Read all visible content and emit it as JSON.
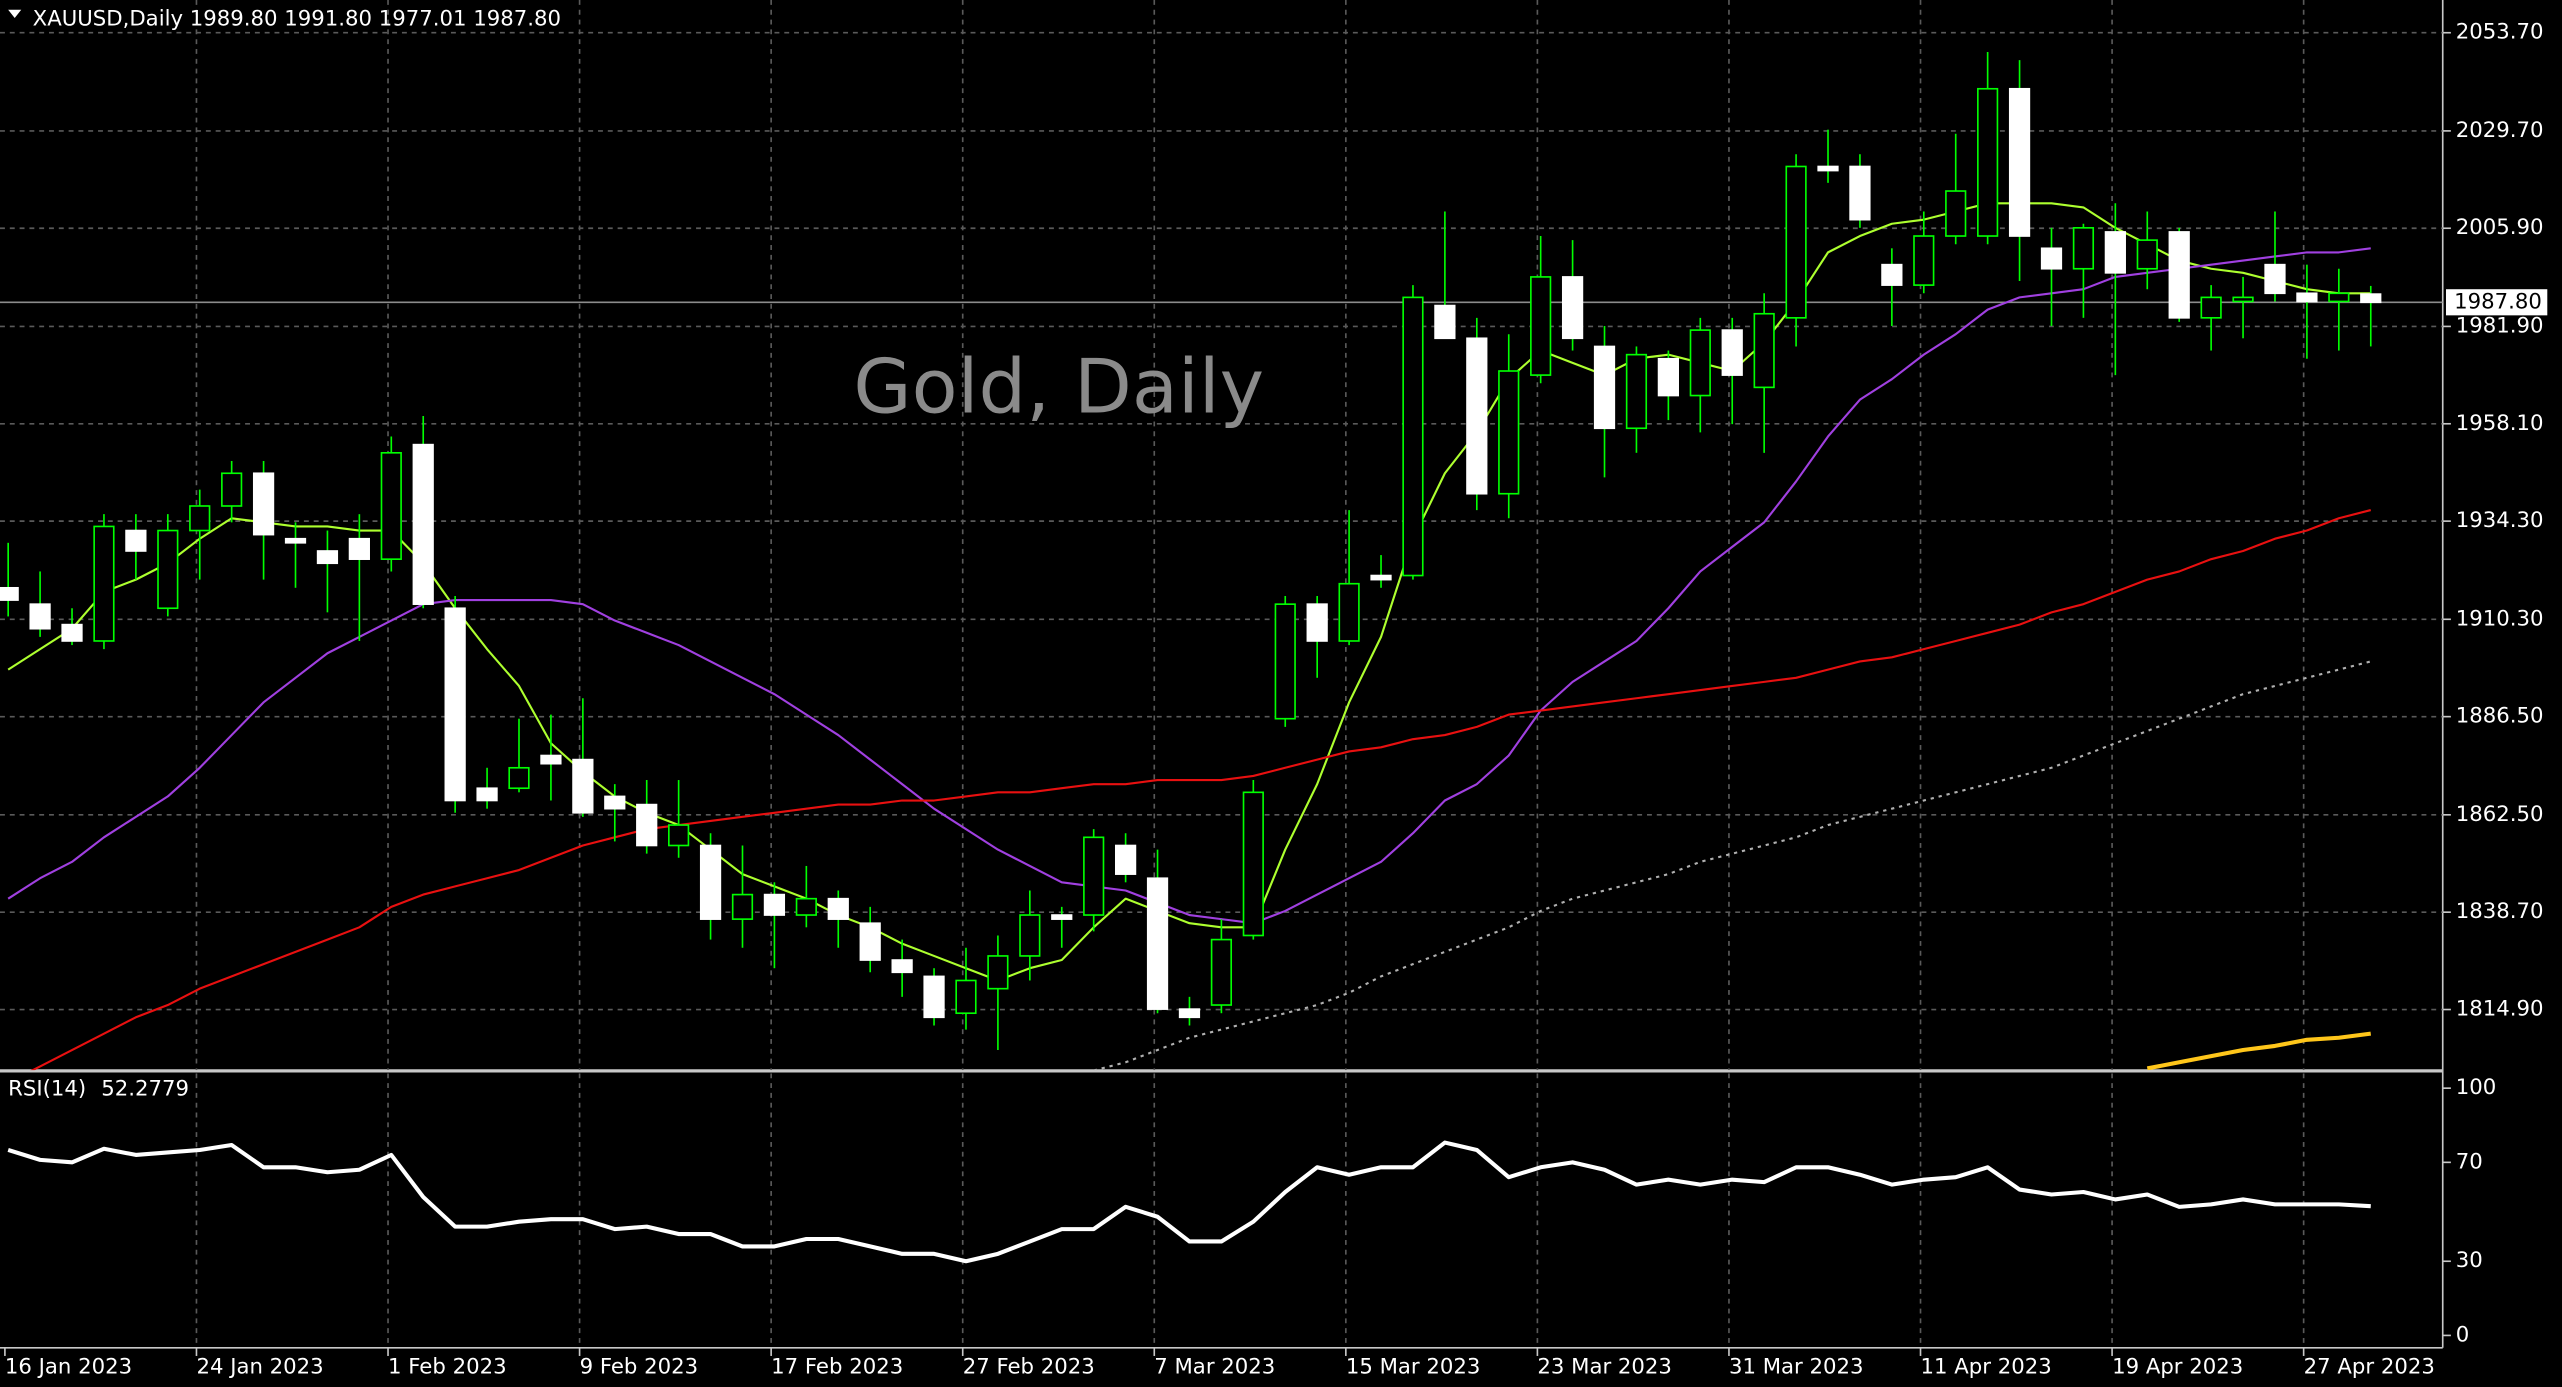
{
  "chart_data": [
    {
      "type": "candlestick",
      "title": "XAUUSD,Daily  1989.80 1991.80 1977.01 1987.80",
      "watermark": "Gold, Daily",
      "categories": [
        "16 Jan 2023",
        null,
        null,
        null,
        null,
        null,
        "24 Jan 2023",
        null,
        null,
        null,
        null,
        null,
        "1 Feb 2023",
        null,
        null,
        null,
        null,
        null,
        "9 Feb 2023",
        null,
        null,
        null,
        null,
        null,
        "17 Feb 2023",
        null,
        null,
        null,
        null,
        null,
        "27 Feb 2023",
        null,
        null,
        null,
        null,
        null,
        "7 Mar 2023",
        null,
        null,
        null,
        null,
        null,
        "15 Mar 2023",
        null,
        null,
        null,
        null,
        null,
        "23 Mar 2023",
        null,
        null,
        null,
        null,
        null,
        "31 Mar 2023",
        null,
        null,
        null,
        null,
        null,
        "11 Apr 2023",
        null,
        null,
        null,
        null,
        null,
        "19 Apr 2023",
        null,
        null,
        null,
        null,
        null,
        "27 Apr 2023",
        null,
        null
      ],
      "open": [
        1918,
        1914,
        1909,
        1905,
        1932,
        1913,
        1932,
        1938,
        1946,
        1930,
        1927,
        1930,
        1925,
        1953,
        1913,
        1869,
        1869,
        1877,
        1876,
        1867,
        1865,
        1855,
        1855,
        1837,
        1843,
        1838,
        1842,
        1836,
        1827,
        1823,
        1814,
        1820,
        1828,
        1838,
        1838,
        1855,
        1847,
        1815,
        1816,
        1833,
        1886,
        1914,
        1905,
        1921,
        1921,
        1987,
        1979,
        1941,
        1970,
        1994,
        1977,
        1957,
        1974,
        1965,
        1981,
        1967,
        1984,
        2021,
        2021,
        1997,
        1992,
        2004,
        2004,
        2040,
        2001,
        1996,
        2005,
        1996,
        2005,
        1984,
        1988,
        1997,
        1990,
        1988,
        1989.8
      ],
      "high": [
        1929,
        1922,
        1913,
        1936,
        1936,
        1936,
        1942,
        1949,
        1949,
        1934,
        1932,
        1936,
        1955,
        1960,
        1916,
        1874,
        1886,
        1887,
        1891,
        1870,
        1871,
        1871,
        1858,
        1855,
        1846,
        1850,
        1844,
        1840,
        1832,
        1825,
        1830,
        1833,
        1844,
        1840,
        1859,
        1858,
        1854,
        1818,
        1837,
        1871,
        1916,
        1916,
        1937,
        1926,
        1992,
        2010,
        1984,
        1980,
        2004,
        2003,
        1982,
        1977,
        1976,
        1984,
        1984,
        1990,
        2024,
        2030,
        2024,
        2001,
        2010,
        2029,
        2049,
        2047,
        2006,
        2007,
        2012,
        2010,
        2006,
        1992,
        1994,
        2010,
        1997,
        1996,
        1991.8
      ],
      "low": [
        1911,
        1906,
        1904,
        1903,
        1920,
        1911,
        1920,
        1934,
        1920,
        1918,
        1912,
        1905,
        1922,
        1913,
        1863,
        1864,
        1868,
        1866,
        1862,
        1856,
        1853,
        1852,
        1832,
        1830,
        1825,
        1835,
        1830,
        1824,
        1818,
        1811,
        1810,
        1805,
        1822,
        1830,
        1834,
        1846,
        1814,
        1811,
        1814,
        1832,
        1884,
        1896,
        1904,
        1918,
        1920,
        1979,
        1937,
        1935,
        1968,
        1976,
        1945,
        1951,
        1959,
        1956,
        1958,
        1951,
        1977,
        2017,
        2006,
        1982,
        1990,
        2002,
        2002,
        1993,
        1982,
        1984,
        1970,
        1991,
        1983,
        1976,
        1979,
        1988,
        1974,
        1976,
        1977.01
      ],
      "close": [
        1915,
        1908,
        1905,
        1933,
        1927,
        1932,
        1938,
        1946,
        1931,
        1929,
        1924,
        1925,
        1951,
        1914,
        1866,
        1866,
        1874,
        1875,
        1863,
        1864,
        1855,
        1860,
        1837,
        1843,
        1838,
        1842,
        1837,
        1827,
        1824,
        1813,
        1822,
        1828,
        1838,
        1837,
        1857,
        1848,
        1815,
        1813,
        1832,
        1868,
        1914,
        1905,
        1919,
        1920,
        1989,
        1979,
        1941,
        1971,
        1994,
        1979,
        1957,
        1975,
        1965,
        1981,
        1970,
        1985,
        2021,
        2020,
        2008,
        1992,
        2004,
        2015,
        2040,
        2004,
        1996,
        2006,
        1995,
        2003,
        1984,
        1989,
        1989,
        1990,
        1988,
        1990,
        1987.8
      ],
      "up_color": "#000000",
      "down_color": "#ffffff",
      "wick_color": "#00ff00",
      "series": [
        {
          "color": "#adff2f",
          "values": [
            1898,
            1903,
            1908,
            1917,
            1920,
            1924,
            1930,
            1935,
            1934,
            1933,
            1933,
            1932,
            1932,
            1924,
            1913,
            1903,
            1894,
            1880,
            1873,
            1867,
            1863,
            1860,
            1854,
            1848,
            1845,
            1842,
            1838,
            1835,
            1831,
            1828,
            1825,
            1822,
            1825,
            1827,
            1835,
            1842,
            1839,
            1836,
            1835,
            1835,
            1854,
            1870,
            1890,
            1906,
            1930,
            1946,
            1956,
            1969,
            1976,
            1973,
            1970,
            1974,
            1975,
            1973,
            1971,
            1978,
            1988,
            2000,
            2004,
            2007,
            2008,
            2010,
            2012,
            2012,
            2012,
            2011,
            2006,
            2002,
            1998,
            1996,
            1995,
            1993,
            1991,
            1990,
            1990
          ]
        },
        {
          "color": "#a040e0",
          "values": [
            1842,
            1847,
            1851,
            1857,
            1862,
            1867,
            1874,
            1882,
            1890,
            1896,
            1902,
            1906,
            1910,
            1914,
            1915,
            1915,
            1915,
            1915,
            1914,
            1910,
            1907,
            1904,
            1900,
            1896,
            1892,
            1887,
            1882,
            1876,
            1870,
            1864,
            1859,
            1854,
            1850,
            1846,
            1845,
            1844,
            1841,
            1838,
            1837,
            1836,
            1839,
            1843,
            1847,
            1851,
            1858,
            1866,
            1870,
            1877,
            1888,
            1895,
            1900,
            1905,
            1913,
            1922,
            1928,
            1934,
            1944,
            1955,
            1964,
            1969,
            1975,
            1980,
            1986,
            1989,
            1990,
            1991,
            1994,
            1995,
            1996,
            1997,
            1998,
            1999,
            2000,
            2000,
            2001
          ]
        },
        {
          "color": "#e81010",
          "values": [
            1797,
            1801,
            1805,
            1809,
            1813,
            1816,
            1820,
            1823,
            1826,
            1829,
            1832,
            1835,
            1840,
            1843,
            1845,
            1847,
            1849,
            1852,
            1855,
            1857,
            1859,
            1860,
            1861,
            1862,
            1863,
            1864,
            1865,
            1865,
            1866,
            1866,
            1867,
            1868,
            1868,
            1869,
            1870,
            1870,
            1871,
            1871,
            1871,
            1872,
            1874,
            1876,
            1878,
            1879,
            1881,
            1882,
            1884,
            1887,
            1888,
            1889,
            1890,
            1891,
            1892,
            1893,
            1894,
            1895,
            1896,
            1898,
            1900,
            1901,
            1903,
            1905,
            1907,
            1909,
            1912,
            1914,
            1917,
            1920,
            1922,
            1925,
            1927,
            1930,
            1932,
            1935,
            1937
          ]
        },
        {
          "color": "#b0b0b0",
          "style": "dotted",
          "values": [
            null,
            null,
            null,
            null,
            null,
            null,
            null,
            null,
            null,
            null,
            null,
            null,
            null,
            null,
            null,
            null,
            null,
            null,
            null,
            null,
            null,
            null,
            null,
            null,
            null,
            null,
            null,
            null,
            null,
            null,
            null,
            null,
            null,
            null,
            1800,
            1802,
            1805,
            1808,
            1810,
            1812,
            1814,
            1816,
            1819,
            1823,
            1826,
            1829,
            1832,
            1835,
            1839,
            1842,
            1844,
            1846,
            1848,
            1851,
            1853,
            1855,
            1857,
            1860,
            1862,
            1864,
            1866,
            1868,
            1870,
            1872,
            1874,
            1877,
            1880,
            1883,
            1886,
            1889,
            1892,
            1894,
            1896,
            1898,
            1900
          ]
        },
        {
          "color": "#ffc61a",
          "values": [
            null,
            null,
            null,
            null,
            null,
            null,
            null,
            null,
            null,
            null,
            null,
            null,
            null,
            null,
            null,
            null,
            null,
            null,
            null,
            null,
            null,
            null,
            null,
            null,
            null,
            null,
            null,
            null,
            null,
            null,
            null,
            null,
            null,
            null,
            null,
            null,
            null,
            null,
            null,
            null,
            null,
            null,
            null,
            null,
            null,
            null,
            null,
            null,
            null,
            null,
            null,
            null,
            null,
            null,
            null,
            null,
            null,
            null,
            null,
            null,
            null,
            null,
            null,
            null,
            null,
            null,
            null,
            1800.5,
            1802,
            1803.5,
            1805,
            1806,
            1807.5,
            1808,
            1809
          ]
        }
      ],
      "last_price": {
        "value": 1987.8,
        "label": "1987.80"
      },
      "ylim": [
        1800.1,
        2061.7
      ],
      "yticks": [
        {
          "value": 2053.7,
          "label": "2053.70"
        },
        {
          "value": 2029.7,
          "label": "2029.70"
        },
        {
          "value": 2005.9,
          "label": "2005.90"
        },
        {
          "value": 1981.9,
          "label": "1981.90"
        },
        {
          "value": 1958.1,
          "label": "1958.10"
        },
        {
          "value": 1934.3,
          "label": "1934.30"
        },
        {
          "value": 1910.3,
          "label": "1910.30"
        },
        {
          "value": 1886.5,
          "label": "1886.50"
        },
        {
          "value": 1862.5,
          "label": "1862.50"
        },
        {
          "value": 1838.7,
          "label": "1838.70"
        },
        {
          "value": 1814.9,
          "label": "1814.90"
        }
      ],
      "grid": true
    },
    {
      "type": "line",
      "title": "RSI(14)",
      "color": "#ffffff",
      "values": [
        75,
        71,
        70,
        75.5,
        73,
        74,
        75,
        77,
        68,
        68,
        66,
        67,
        73,
        56,
        44,
        44,
        46,
        47,
        47,
        43,
        44,
        41,
        41,
        36,
        36,
        39,
        39,
        36,
        33,
        33,
        30,
        33,
        38,
        43,
        43,
        52,
        48,
        38,
        38,
        46,
        58,
        68,
        65,
        68,
        68,
        78,
        75,
        64,
        68,
        70,
        67,
        61,
        63,
        61,
        63,
        62,
        68,
        68,
        65,
        61,
        63,
        64,
        68,
        59,
        57,
        58,
        55,
        57,
        52,
        53,
        55,
        53,
        53,
        53,
        52.2779
      ],
      "ylim": [
        -5,
        106
      ],
      "yticks": [
        100,
        70,
        30,
        0
      ],
      "grid": false
    }
  ]
}
